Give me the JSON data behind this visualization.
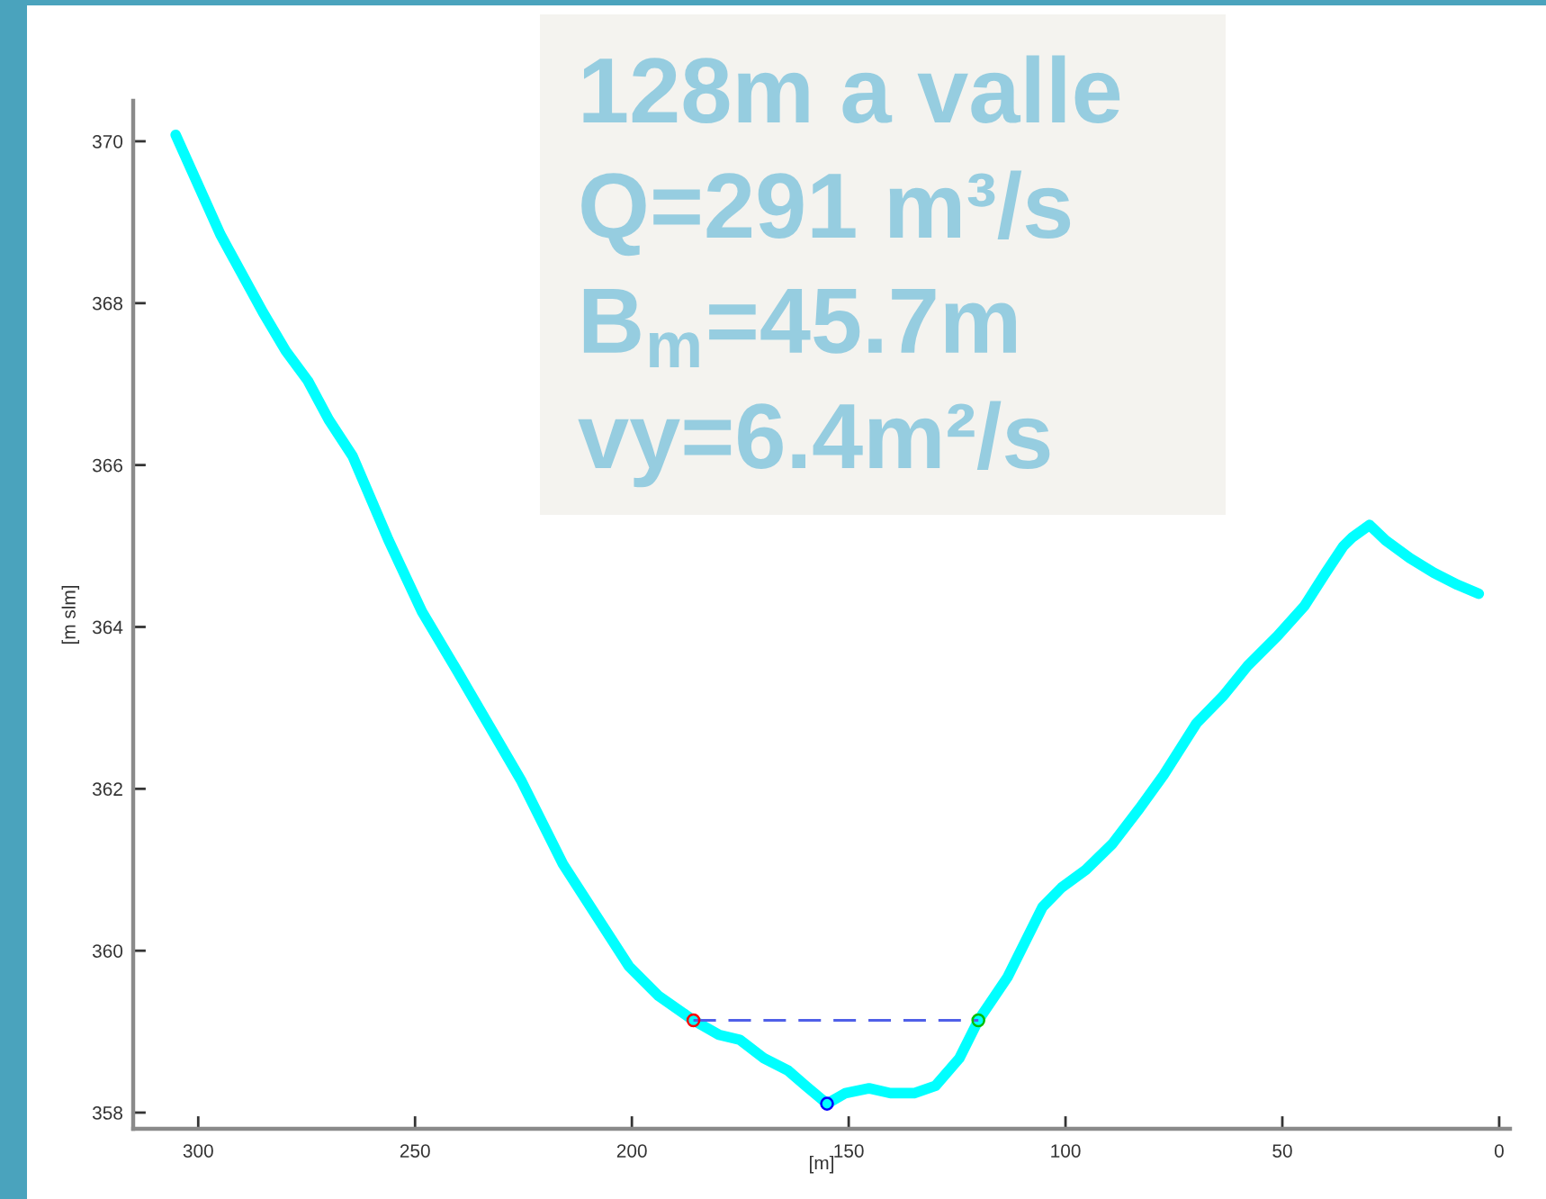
{
  "chart_data": {
    "type": "line",
    "xlabel": "[m]",
    "ylabel": "[m slm]",
    "xlim": [
      315,
      -2.5
    ],
    "ylim": [
      357.8,
      370.5
    ],
    "xticks": [
      300,
      250,
      200,
      150,
      100,
      50,
      0
    ],
    "yticks": [
      358,
      360,
      362,
      364,
      366,
      368,
      370
    ],
    "grid": false,
    "annotations": [
      "128m a valle",
      "Q=291 m³/s",
      "B$_{m}$=45.7m",
      "vy=6.4m²/s"
    ],
    "series": [
      {
        "color": "#00ffff",
        "line_style": "solid",
        "marker": "none",
        "x": [
          305.2,
          294.9,
          285.1,
          279.8,
          274.7,
          269.9,
          264.4,
          256.1,
          248.4,
          240.1,
          225.6,
          215.9,
          200.7,
          193.8,
          185.8,
          179.9,
          175.1,
          169.5,
          164.0,
          159.9,
          155.0,
          150.8,
          145.3,
          140.4,
          134.9,
          130.0,
          124.5,
          120.1,
          113.4,
          105.3,
          100.9,
          95.3,
          89.2,
          82.9,
          77.4,
          69.8,
          63.6,
          58.0,
          51.1,
          44.9,
          40.0,
          35.9,
          33.8,
          29.9,
          26.2,
          20.6,
          15.1,
          9.6,
          4.7
        ],
        "values": [
          370.08,
          368.85,
          367.89,
          367.41,
          367.04,
          366.56,
          366.11,
          365.07,
          364.19,
          363.44,
          362.11,
          361.07,
          359.81,
          359.44,
          359.14,
          358.96,
          358.9,
          358.67,
          358.52,
          358.33,
          358.11,
          358.24,
          358.3,
          358.24,
          358.24,
          358.33,
          358.67,
          359.14,
          359.67,
          360.54,
          360.78,
          361.0,
          361.32,
          361.76,
          362.17,
          362.81,
          363.15,
          363.52,
          363.89,
          364.26,
          364.67,
          365.0,
          365.11,
          365.26,
          365.07,
          364.85,
          364.67,
          364.52,
          364.41
        ]
      },
      {
        "color": "#4f5fe8",
        "line_style": "dashed",
        "marker": "none",
        "x": [
          185.8,
          120.1
        ],
        "values": [
          359.14,
          359.14
        ]
      },
      {
        "type": "scatter",
        "marker": "circle",
        "colors": [
          "#ff0000",
          "#00c000",
          "#0000ff"
        ],
        "x": [
          185.8,
          120.1,
          155.0
        ],
        "values": [
          359.14,
          359.14,
          358.11
        ]
      }
    ]
  }
}
